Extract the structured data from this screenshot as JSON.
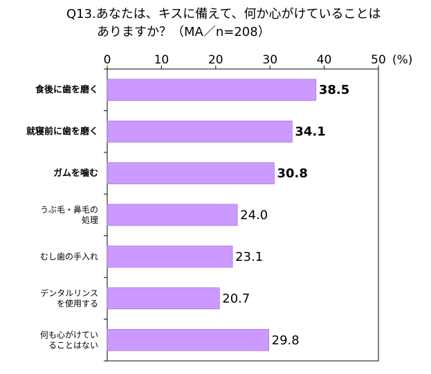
{
  "title_lines": [
    "Q13.あなたは、キスに備えて、何か心がけていることは",
    "ありますか？（MA／n=208）"
  ],
  "chart_data": {
    "type": "bar",
    "orientation": "horizontal",
    "title": "Q13.あなたは、キスに備えて、何か心がけていることは ありますか？（MA／n=208）",
    "xlim": [
      0,
      50
    ],
    "x_ticks": [
      "0",
      "10",
      "20",
      "30",
      "40",
      "50"
    ],
    "x_unit": "(%)",
    "categories": [
      [
        "食後に歯を磨く"
      ],
      [
        "就寝前に歯を磨く"
      ],
      [
        "ガムを噛む"
      ],
      [
        "うぶ毛・鼻毛の",
        "処理"
      ],
      [
        "むし歯の手入れ"
      ],
      [
        "デンタルリンス",
        "を使用する"
      ],
      [
        "何も心がけてい",
        "ることはない"
      ]
    ],
    "values": [
      38.5,
      34.1,
      30.8,
      24.0,
      23.1,
      20.7,
      29.8
    ],
    "value_labels": [
      "38.5",
      "34.1",
      "30.8",
      "24.0",
      "23.1",
      "20.7",
      "29.8"
    ],
    "bold": [
      true,
      true,
      true,
      false,
      false,
      false,
      false
    ],
    "bar_color": "#cc99ff",
    "grid": false
  }
}
